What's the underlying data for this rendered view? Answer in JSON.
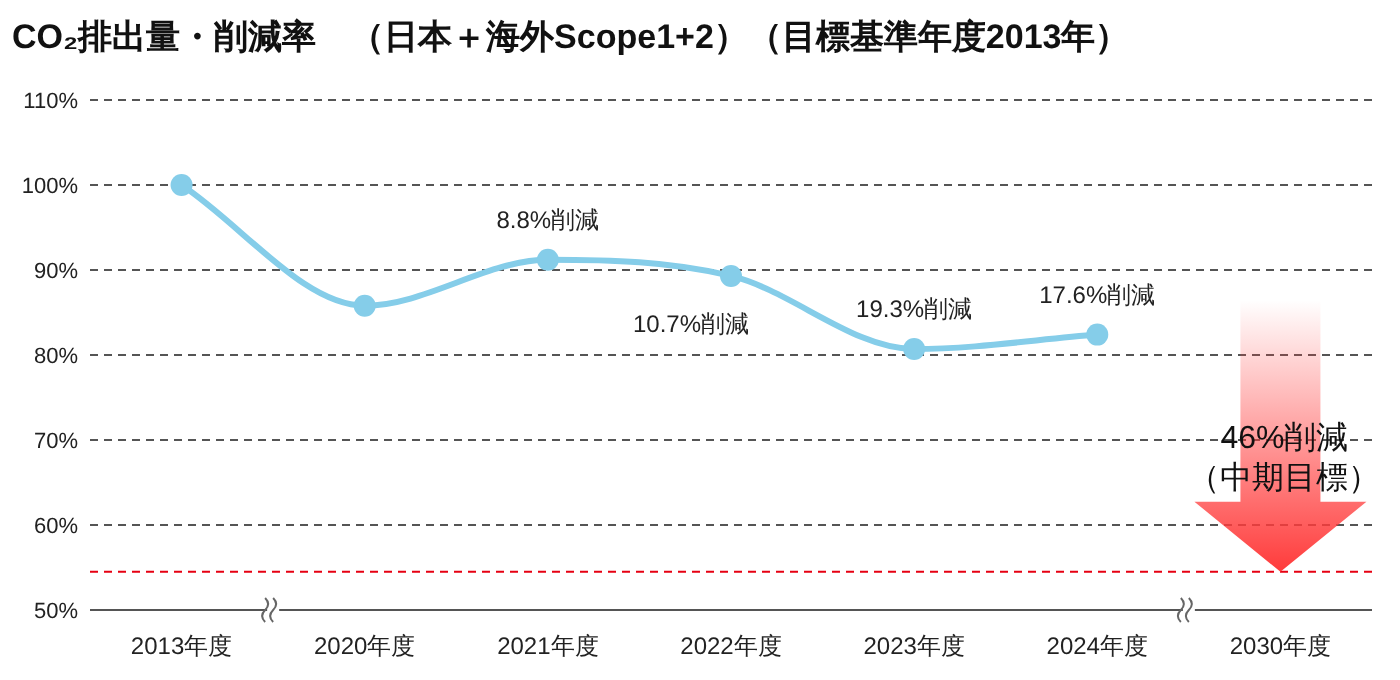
{
  "chart_data": {
    "type": "line",
    "title": "CO₂排出量・削減率　（日本＋海外Scope1+2）（目標基準年度2013年）",
    "categories": [
      "2013年度",
      "2020年度",
      "2021年度",
      "2022年度",
      "2023年度",
      "2024年度",
      "2030年度"
    ],
    "series": [
      {
        "color": "#85cde9",
        "values": [
          100,
          85.8,
          91.2,
          89.3,
          80.7,
          82.4,
          null
        ]
      }
    ],
    "annotations": [
      {
        "text": "8.8%削減",
        "x": "2021年度",
        "y": 91.2
      },
      {
        "text": "10.7%削減",
        "x": "2022年度",
        "y": 89.3
      },
      {
        "text": "19.3%削減",
        "x": "2023年度",
        "y": 80.7
      },
      {
        "text": "17.6%削減",
        "x": "2024年度",
        "y": 82.4
      }
    ],
    "ylim": [
      50,
      110
    ],
    "yticks": [
      {
        "value": 50,
        "label": "50%"
      },
      {
        "value": 60,
        "label": "60%"
      },
      {
        "value": 70,
        "label": "70%"
      },
      {
        "value": 80,
        "label": "80%"
      },
      {
        "value": 90,
        "label": "90%"
      },
      {
        "value": 100,
        "label": "100%"
      },
      {
        "value": 110,
        "label": "110%"
      }
    ],
    "ref_lines": [
      {
        "axis": "y",
        "value": 54.5,
        "label": "46%削減（中期目標）",
        "color": "#e60012",
        "line_style": "dashed"
      }
    ],
    "grid": "y",
    "marker": "circle",
    "line_style": "solid"
  }
}
